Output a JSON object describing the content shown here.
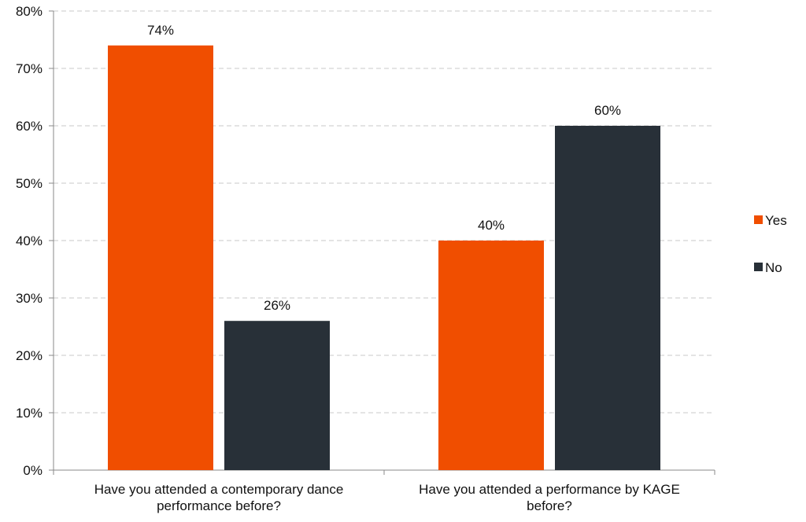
{
  "chart_data": {
    "type": "bar",
    "categories": [
      [
        "Have you attended a contemporary dance",
        "performance before?"
      ],
      [
        "Have you attended a performance by KAGE",
        "before?"
      ]
    ],
    "series": [
      {
        "name": "Yes",
        "values": [
          74,
          40
        ],
        "labels": [
          "74%",
          "40%"
        ],
        "color": "#f04e00"
      },
      {
        "name": "No",
        "values": [
          26,
          60
        ],
        "labels": [
          "26%",
          "60%"
        ],
        "color": "#283038"
      }
    ],
    "ylim": [
      0,
      80
    ],
    "yticks": [
      0,
      10,
      20,
      30,
      40,
      50,
      60,
      70,
      80
    ],
    "ytick_labels": [
      "0%",
      "10%",
      "20%",
      "30%",
      "40%",
      "50%",
      "60%",
      "70%",
      "80%"
    ],
    "grid": true,
    "legend_position": "right",
    "title": "",
    "xlabel": "",
    "ylabel": ""
  }
}
